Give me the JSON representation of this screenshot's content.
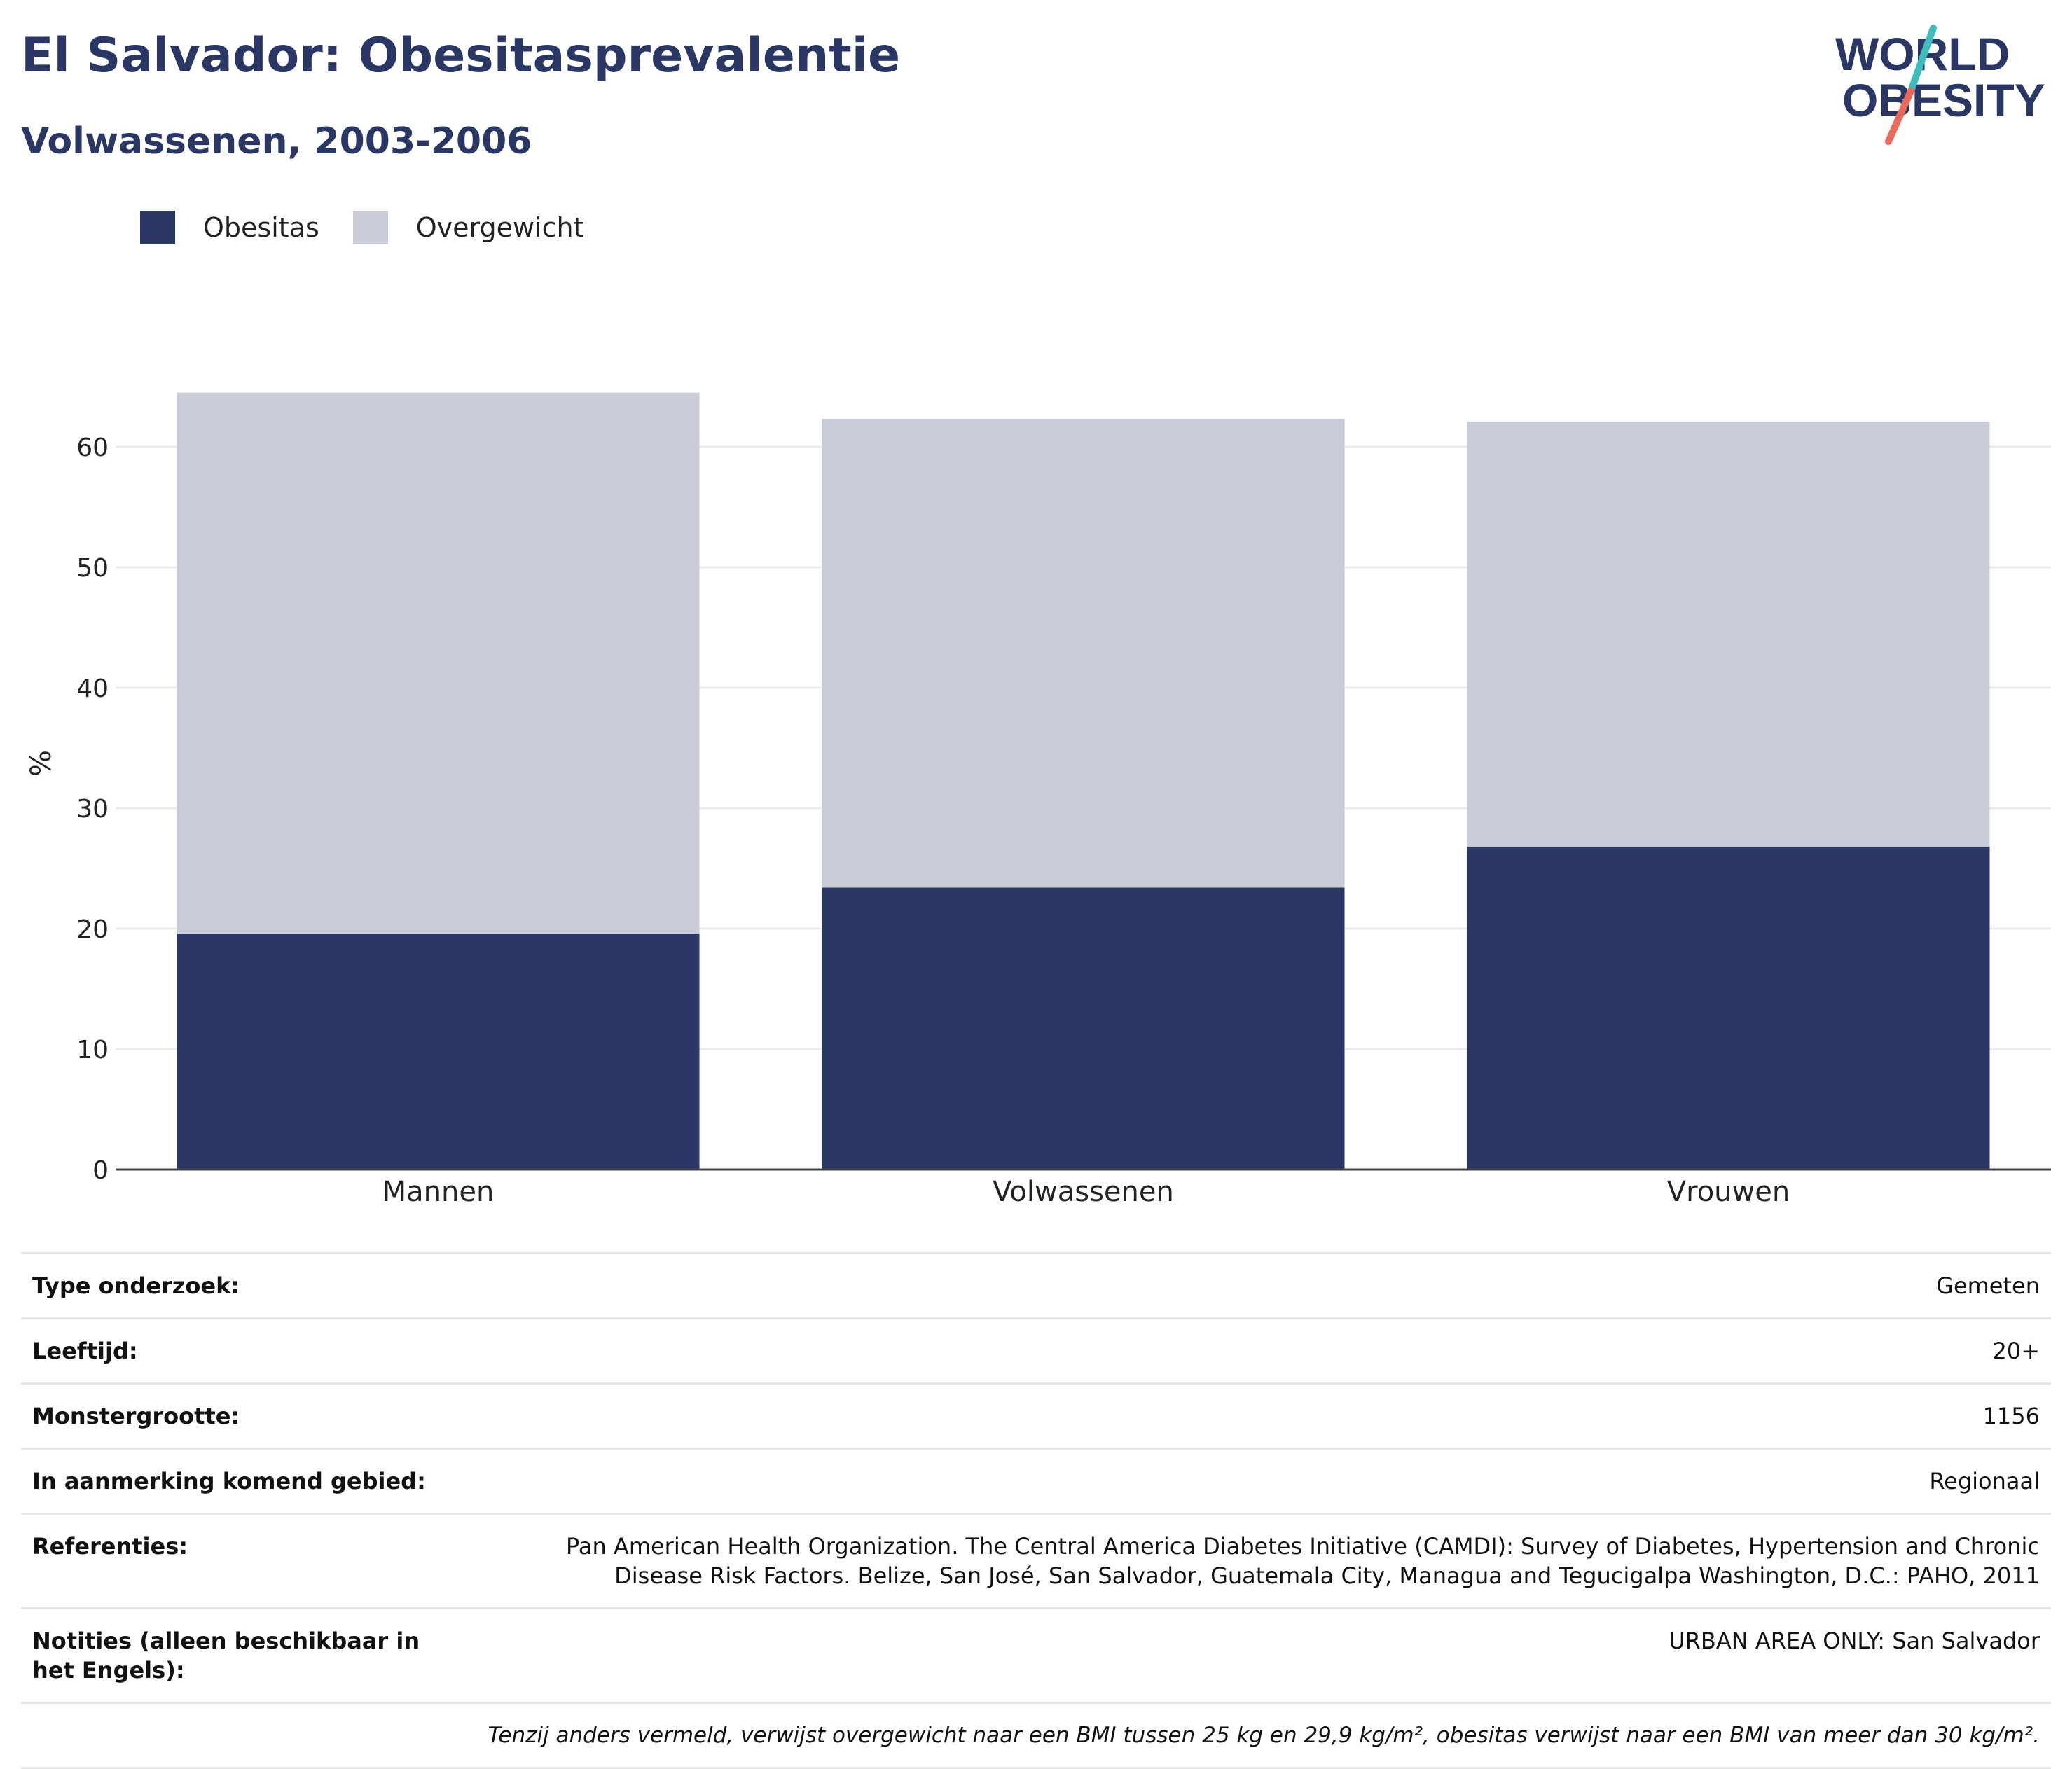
{
  "header": {
    "title": "El Salvador: Obesitasprevalentie",
    "subtitle": "Volwassenen, 2003-2006"
  },
  "logo": {
    "line1": "WORLD",
    "line2": "OBESITY"
  },
  "colors": {
    "obesity": "#2a3663",
    "overweight": "#c9cbd6",
    "title": "#2a3663",
    "logo_teal": "#3dbdbd",
    "logo_red": "#e96a5a"
  },
  "chart_data": {
    "type": "bar",
    "stacked": true,
    "categories": [
      "Mannen",
      "Volwassenen",
      "Vrouwen"
    ],
    "series": [
      {
        "name": "Obesitas",
        "values": [
          19.6,
          23.4,
          26.8
        ]
      },
      {
        "name": "Overgewicht",
        "values": [
          44.9,
          38.9,
          35.3
        ]
      }
    ],
    "ylabel": "%",
    "ylim": [
      0,
      70
    ],
    "yticks": [
      0,
      10,
      20,
      30,
      40,
      50,
      60
    ],
    "grid": true,
    "legend": "top-left"
  },
  "table": {
    "rows": [
      {
        "label": "Type onderzoek:",
        "value": "Gemeten"
      },
      {
        "label": "Leeftijd:",
        "value": "20+"
      },
      {
        "label": "Monstergrootte:",
        "value": "1156"
      },
      {
        "label": "In aanmerking komend gebied:",
        "value": "Regionaal"
      },
      {
        "label": "Referenties:",
        "value": "Pan American Health Organization. The Central America Diabetes Initiative (CAMDI): Survey of Diabetes, Hypertension and Chronic Disease Risk Factors. Belize, San José, San Salvador, Guatemala City, Managua and Tegucigalpa Washington, D.C.: PAHO, 2011"
      },
      {
        "label": "Notities (alleen beschikbaar in het Engels):",
        "value": "URBAN AREA ONLY: San Salvador"
      }
    ],
    "footnote": "Tenzij anders vermeld, verwijst overgewicht naar een BMI tussen 25 kg en 29,9 kg/m², obesitas verwijst naar een BMI van meer dan 30 kg/m²."
  }
}
